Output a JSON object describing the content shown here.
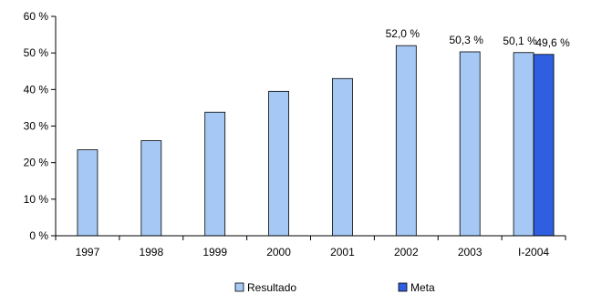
{
  "chart_data": {
    "type": "bar",
    "categories": [
      "1997",
      "1998",
      "1999",
      "2000",
      "2001",
      "2002",
      "2003",
      "I-2004"
    ],
    "ylim": [
      0,
      60
    ],
    "yticks": [
      {
        "value": 0,
        "label": "0 %"
      },
      {
        "value": 10,
        "label": "10 %"
      },
      {
        "value": 20,
        "label": "20 %"
      },
      {
        "value": 30,
        "label": "30 %"
      },
      {
        "value": 40,
        "label": "40 %"
      },
      {
        "value": 50,
        "label": "50 %"
      },
      {
        "value": 60,
        "label": "60 %"
      }
    ],
    "grid": false,
    "legend_position": "bottom",
    "series": [
      {
        "name": "Resultado",
        "color": "#a6c8f4",
        "values": [
          23.5,
          26.0,
          33.8,
          39.5,
          43.0,
          52.0,
          50.3,
          50.1
        ],
        "labels": [
          "",
          "",
          "",
          "",
          "",
          "52,0 %",
          "50,3 %",
          "50,1 %"
        ]
      },
      {
        "name": "Meta",
        "color": "#2f5fe0",
        "values": [
          null,
          null,
          null,
          null,
          null,
          null,
          null,
          49.6
        ],
        "labels": [
          "",
          "",
          "",
          "",
          "",
          "",
          "",
          "49,6 %"
        ]
      }
    ]
  }
}
